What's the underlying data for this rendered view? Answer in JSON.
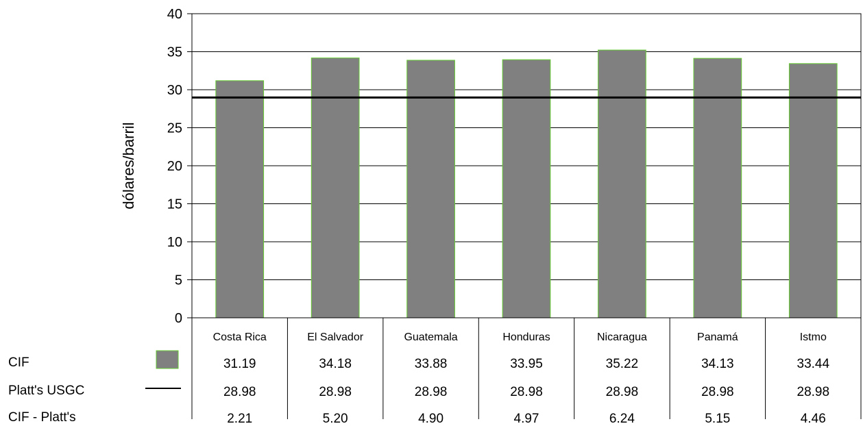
{
  "chart_data": {
    "type": "bar",
    "categories": [
      "Costa Rica",
      "El Salvador",
      "Guatemala",
      "Honduras",
      "Nicaragua",
      "Panamá",
      "Istmo"
    ],
    "series": [
      {
        "name": "CIF",
        "type": "bar",
        "values": [
          31.19,
          34.18,
          33.88,
          33.95,
          35.22,
          34.13,
          33.44
        ],
        "color": "#808080",
        "edge_color": "#66cc33"
      },
      {
        "name": "Platt's USGC",
        "type": "line",
        "values": [
          28.98,
          28.98,
          28.98,
          28.98,
          28.98,
          28.98,
          28.98
        ],
        "color": "#000000"
      }
    ],
    "table": {
      "rows": [
        {
          "label": "CIF",
          "values": [
            "31.19",
            "34.18",
            "33.88",
            "33.95",
            "35.22",
            "34.13",
            "33.44"
          ]
        },
        {
          "label": "Platt's USGC",
          "values": [
            "28.98",
            "28.98",
            "28.98",
            "28.98",
            "28.98",
            "28.98",
            "28.98"
          ]
        },
        {
          "label": "CIF - Platt's",
          "values": [
            "2.21",
            "5.20",
            "4.90",
            "4.97",
            "6.24",
            "5.15",
            "4.46"
          ]
        }
      ]
    },
    "ylabel": "dólares/barril",
    "ylim": [
      0,
      40
    ],
    "yticks": [
      0,
      5,
      10,
      15,
      20,
      25,
      30,
      35,
      40
    ],
    "grid": true,
    "legend": "data-table"
  }
}
